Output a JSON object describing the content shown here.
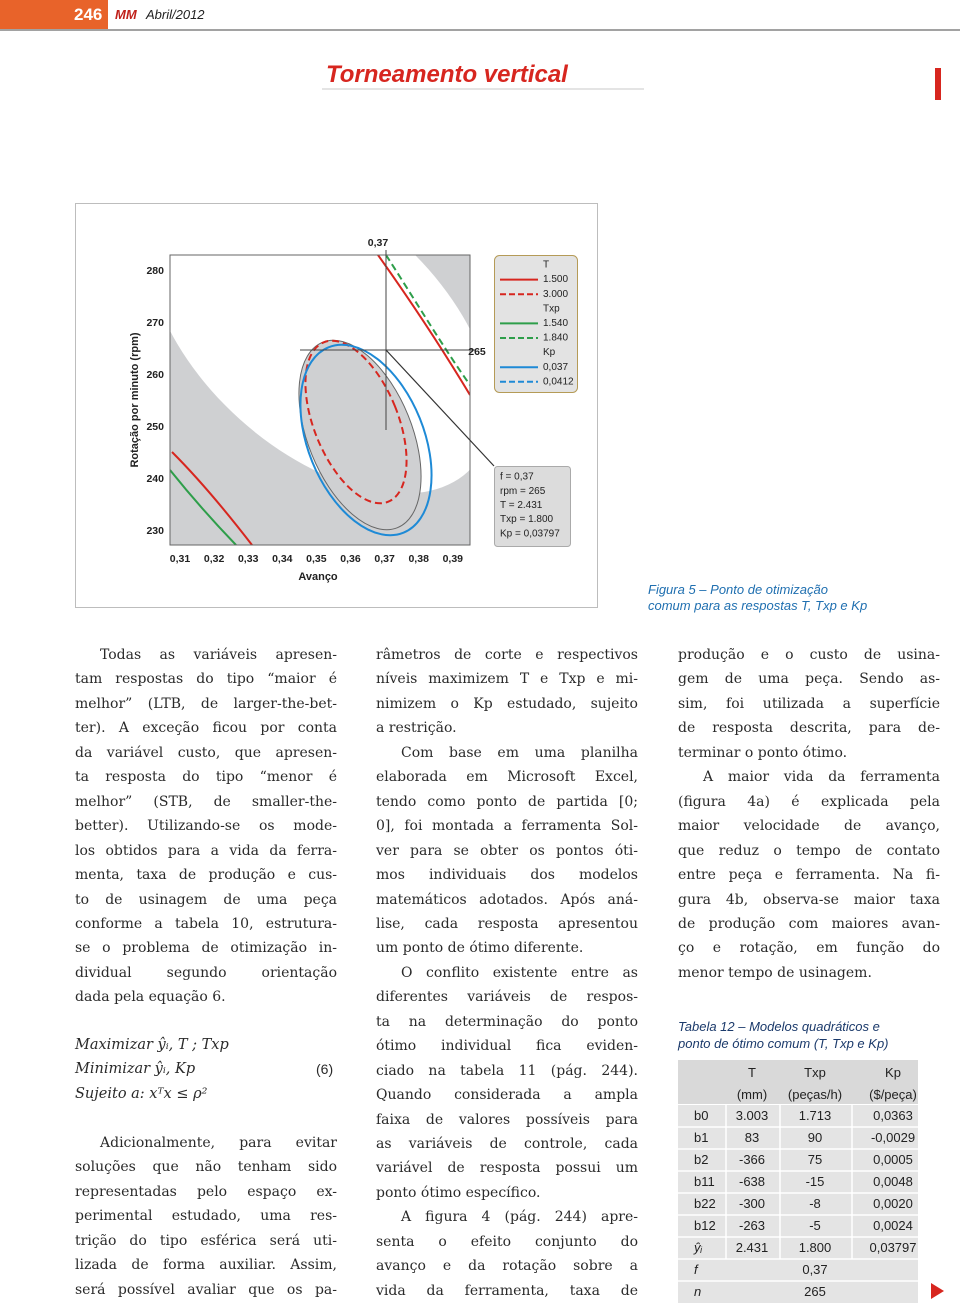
{
  "header": {
    "page": "246",
    "logo": "MM",
    "date": "Abril/2012"
  },
  "title": "Torneamento vertical",
  "figure": {
    "y_label": "Rotação por minuto (rpm)",
    "x_label": "Avanço",
    "xticks": [
      "0,31",
      "0,32",
      "0,33",
      "0,34",
      "0,35",
      "0,36",
      "0,37",
      "0,38",
      "0,39"
    ],
    "yticks": [
      "280",
      "270",
      "260",
      "250",
      "240",
      "230"
    ],
    "top_label": "0,37",
    "side_label": "265",
    "legend": [
      {
        "title": "T",
        "items": [
          "1.500",
          "3.000"
        ]
      },
      {
        "title": "Txp",
        "items": [
          "1.540",
          "1.840"
        ]
      },
      {
        "title": "Kp",
        "items": [
          "0,037",
          "0,0412"
        ]
      }
    ],
    "info": [
      "f = 0,37",
      "rpm = 265",
      "T = 2.431",
      "Txp = 1.800",
      "Kp = 0,03797"
    ]
  },
  "caption": [
    "Figura 5 – Ponto de otimização",
    "comum para as respostas T, Txp e Kp"
  ],
  "columns": [
    [
      {
        "lines": [
          "Todas as variáveis apresen-",
          "tam respostas do tipo “maior é",
          "melhor” (LTB, de larger-the-bet-",
          "ter). A exceção ficou por conta",
          "da variável custo, que apresen-",
          "ta resposta do tipo “menor é",
          "melhor” (STB, de smaller-the-",
          "better). Utilizando-se os mode-",
          "los obtidos para a vida da ferra-",
          "menta, taxa de produção e cus-",
          "to de usinagem de uma peça",
          "conforme a tabela 10, estrutura-",
          "se o problema de otimização in-",
          "dividual segundo orientação",
          "dada pela equação 6."
        ]
      },
      {
        "lines": [
          "Adicionalmente, para evitar",
          "soluções que não tenham sido",
          "representadas pelo espaço ex-",
          "perimental estudado, uma res-",
          "trição do tipo esférica será uti-",
          "lizada de forma auxiliar. Assim,",
          "será possível avaliar que os pa-"
        ]
      }
    ],
    [
      {
        "lines": [
          "râmetros de corte e respectivos",
          "níveis maximizem T e Txp e mi-",
          "nimizem o Kp estudado, sujeito",
          "a restrição."
        ]
      },
      {
        "lines": [
          "Com base em uma planilha",
          "elaborada em Microsoft Excel,",
          "tendo como ponto de partida [0;",
          "0], foi montada a ferramenta Sol-",
          "ver para se obter os pontos óti-",
          "mos individuais dos modelos",
          "matemáticos adotados. Após aná-",
          "lise, cada resposta apresentou",
          "um ponto de ótimo diferente."
        ]
      },
      {
        "lines": [
          "O conflito existente entre as",
          "diferentes variáveis de respos-",
          "ta na determinação do ponto",
          "ótimo individual fica eviden-",
          "ciado na tabela 11 (pág. 244).",
          "Quando considerada a ampla",
          "faixa de valores possíveis para",
          "as variáveis de controle, cada",
          "variável de resposta possui um",
          "ponto ótimo específico."
        ]
      },
      {
        "lines": [
          "A figura 4 (pág. 244) apre-",
          "senta o efeito conjunto do",
          "avanço e da rotação sobre a",
          "vida da ferramenta, taxa de"
        ]
      }
    ],
    [
      {
        "lines": [
          "produção e o custo de usina-",
          "gem de uma peça. Sendo as-",
          "sim, foi utilizada a superfície",
          "de resposta descrita, para de-",
          "terminar o ponto ótimo."
        ]
      },
      {
        "lines": [
          "A maior vida da ferramenta",
          "(figura 4a) é explicada pela",
          "maior velocidade de avanço,",
          "que reduz o tempo de contato",
          "entre peça e ferramenta. Na fi-",
          "gura 4b, observa-se maior taxa",
          "de produção com maiores avan-",
          "ço e rotação, em função do",
          "menor tempo de usinagem."
        ]
      }
    ]
  ],
  "equation": {
    "lines": [
      "Maximizar ŷᵢ, T ; Txp",
      "Minimizar ŷᵢ, Kp",
      "Sujeito a: xᵀx ≤ ρ²"
    ],
    "number": "(6)"
  },
  "table": {
    "caption": [
      "Tabela 12 – Modelos quadráticos e",
      "ponto de ótimo comum (T, Txp e Kp)"
    ],
    "header": [
      {
        "label": "T",
        "unit": "(mm)"
      },
      {
        "label": "Txp",
        "unit": "(peças/h)"
      },
      {
        "label": "Kp",
        "unit": "($/peça)"
      }
    ],
    "rows": [
      [
        "b0",
        "3.003",
        "1.713",
        "0,0363"
      ],
      [
        "b1",
        "83",
        "90",
        "-0,0029"
      ],
      [
        "b2",
        "-366",
        "75",
        "0,0005"
      ],
      [
        "b11",
        "-638",
        "-15",
        "0,0048"
      ],
      [
        "b22",
        "-300",
        "-8",
        "0,0020"
      ],
      [
        "b12",
        "-263",
        "-5",
        "0,0024"
      ],
      [
        "ŷᵢ",
        "2.431",
        "1.800",
        "0,03797"
      ],
      [
        "f",
        "0,37"
      ],
      [
        "n",
        "265"
      ]
    ]
  }
}
